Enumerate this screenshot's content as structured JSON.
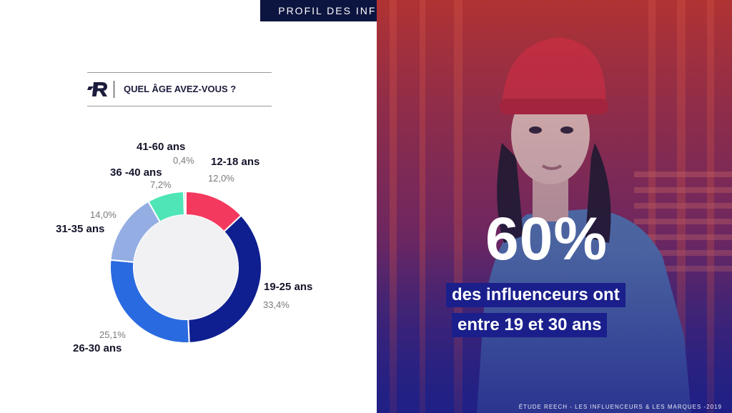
{
  "header": {
    "title": "PROFIL DES INFLUENCEURS"
  },
  "question": {
    "text": "QUEL ÂGE AVEZ-VOUS ?",
    "logo": "R"
  },
  "chart_data": {
    "type": "pie",
    "donut": true,
    "title": "QUEL ÂGE AVEZ-VOUS ?",
    "categories": [
      "12-18 ans",
      "19-25 ans",
      "26-30 ans",
      "31-35 ans",
      "36 -40 ans",
      "41-60 ans"
    ],
    "values": [
      12.0,
      33.4,
      25.1,
      14.0,
      7.2,
      0.4
    ],
    "value_labels": [
      "12,0%",
      "33,4%",
      "25,1%",
      "14,0%",
      "7,2%",
      "0,4%"
    ],
    "colors": [
      "#f4395f",
      "#0f1f8f",
      "#2a6ae0",
      "#94aee3",
      "#4fe5b7",
      "#cfcfcf"
    ]
  },
  "highlight": {
    "big_stat": "60%",
    "line1": "des influenceurs ont",
    "line2": "entre 19 et 30 ans"
  },
  "footer": {
    "text": "ÉTUDE REECH - LES INFLUENCEURS & LES MARQUES -2019"
  }
}
